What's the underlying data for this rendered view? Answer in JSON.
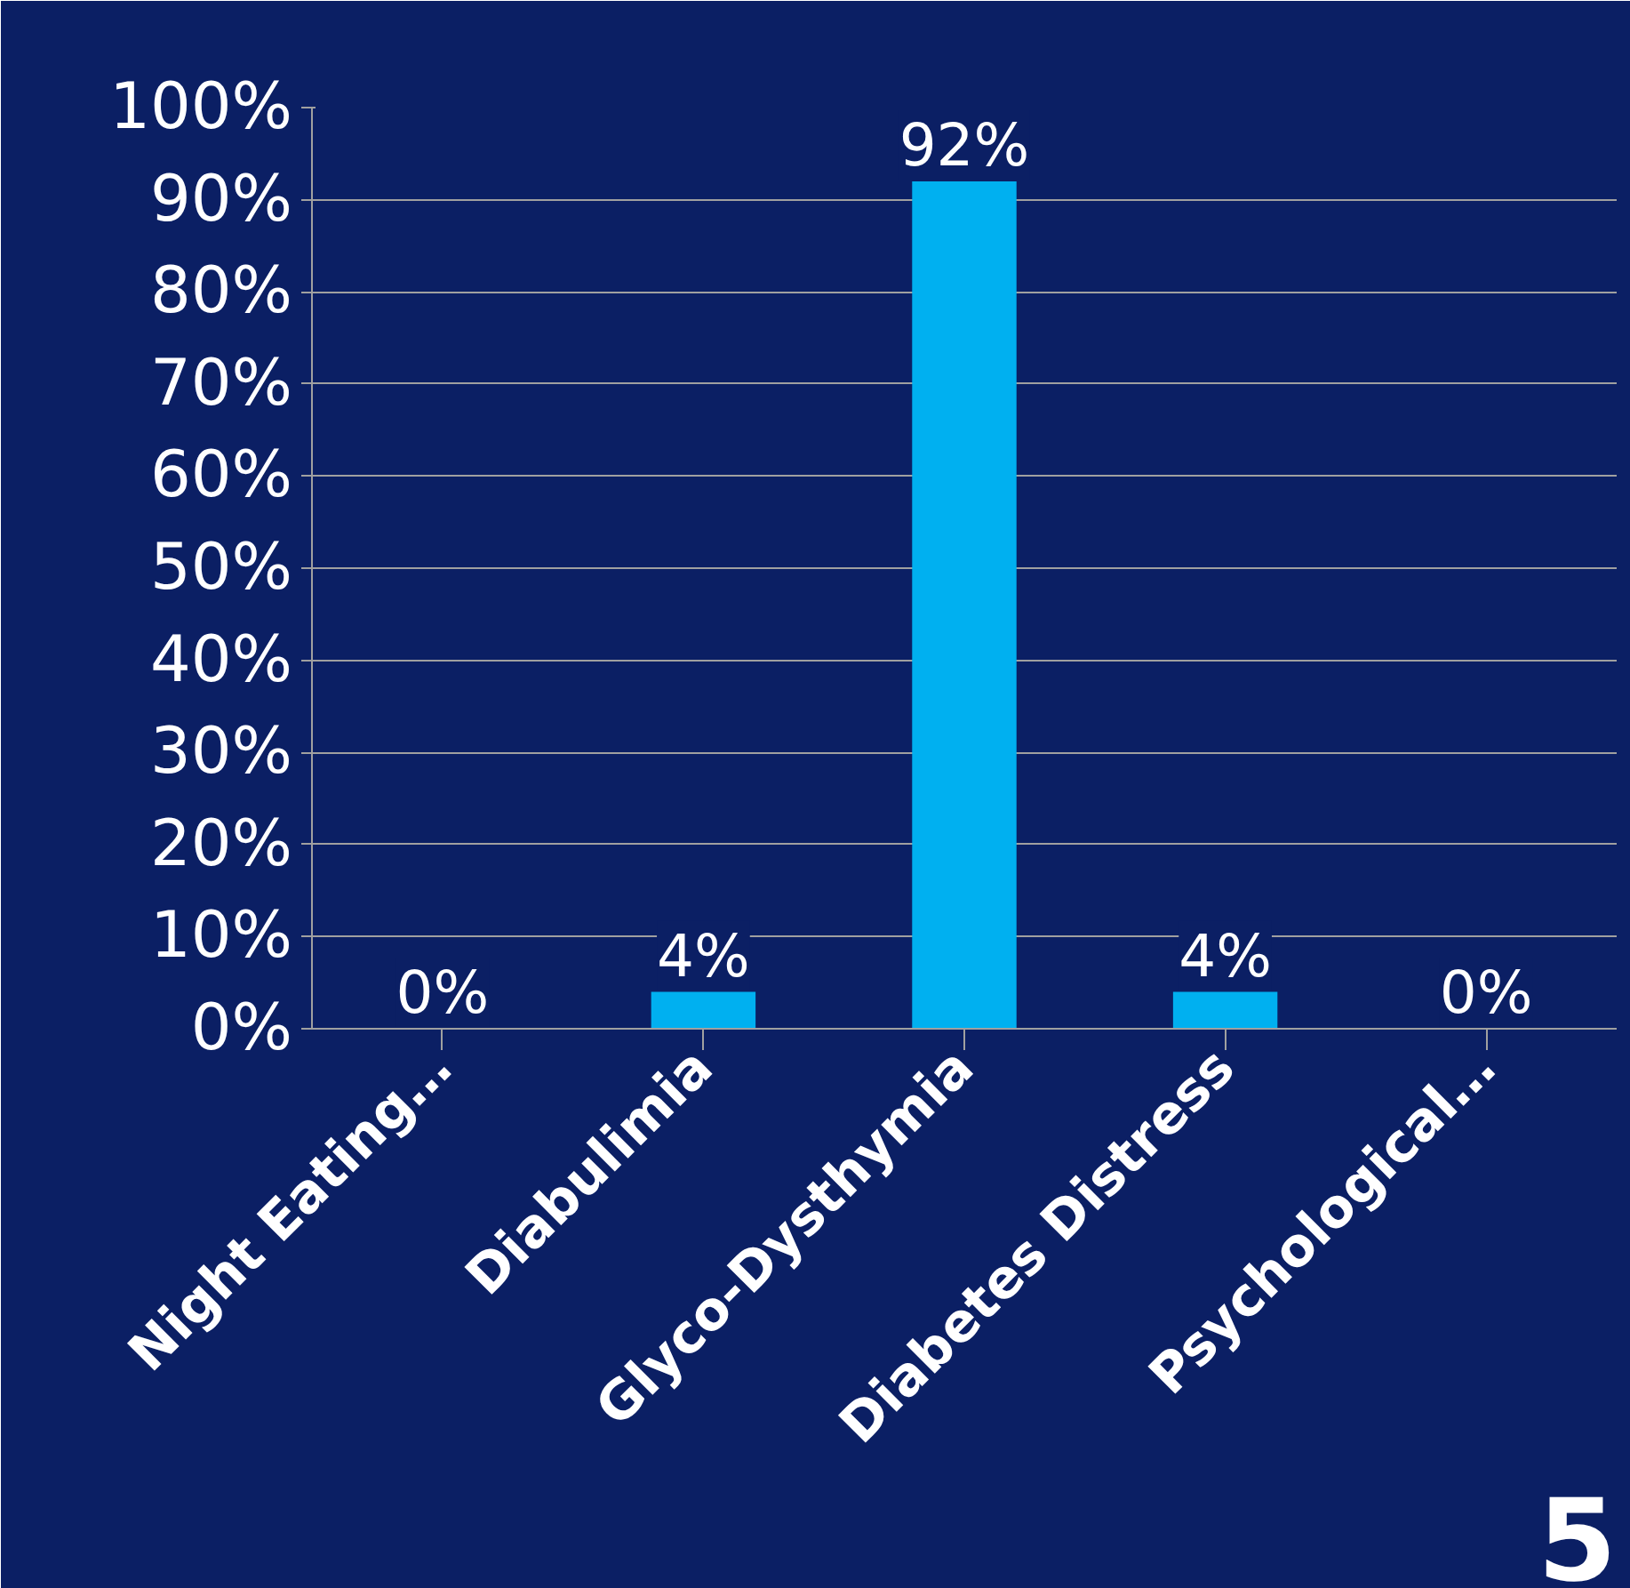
{
  "chart_data": {
    "type": "bar",
    "categories": [
      "Night Eating…",
      "Diabulimia",
      "Glyco-Dysthymia",
      "Diabetes Distress",
      "Psychological…"
    ],
    "values": [
      0,
      4,
      92,
      4,
      0
    ],
    "value_labels": [
      "0%",
      "4%",
      "92%",
      "4%",
      "0%"
    ],
    "color": "#00b0f0",
    "ylim": [
      0,
      100
    ],
    "yticks": [
      {
        "value": 0,
        "label": "0%"
      },
      {
        "value": 10,
        "label": "10%"
      },
      {
        "value": 20,
        "label": "20%"
      },
      {
        "value": 30,
        "label": "30%"
      },
      {
        "value": 40,
        "label": "40%"
      },
      {
        "value": 50,
        "label": "50%"
      },
      {
        "value": 60,
        "label": "60%"
      },
      {
        "value": 70,
        "label": "70%"
      },
      {
        "value": 80,
        "label": "80%"
      },
      {
        "value": 90,
        "label": "90%"
      },
      {
        "value": 100,
        "label": "100%"
      }
    ],
    "grid": "y",
    "annotations": [
      "5"
    ]
  }
}
